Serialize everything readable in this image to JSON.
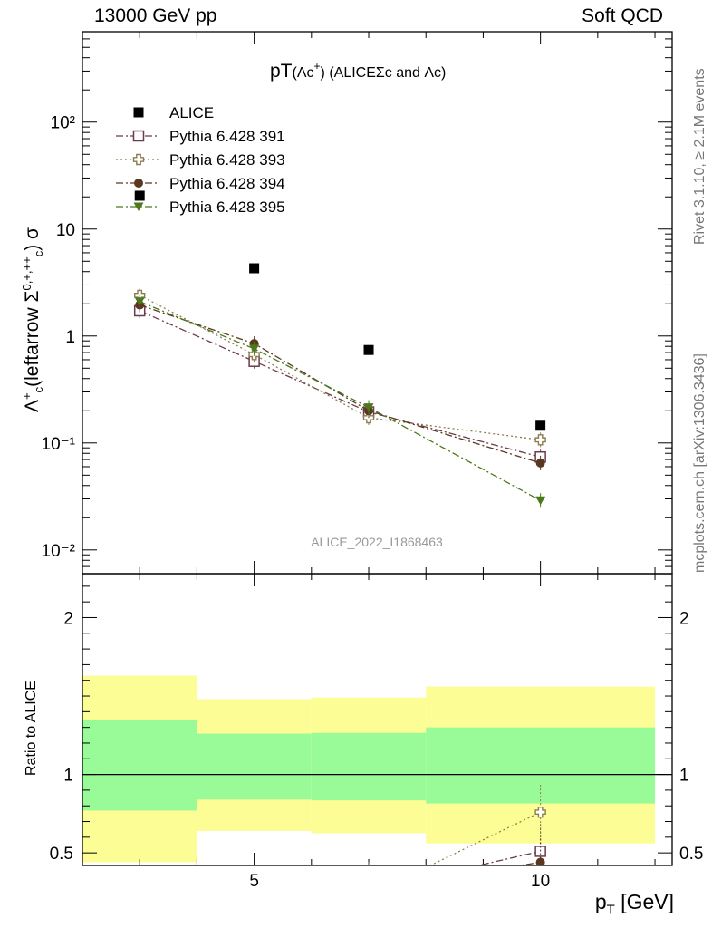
{
  "header": {
    "left": "13000 GeV pp",
    "right": "Soft QCD"
  },
  "side_text": {
    "rivet": "Rivet 3.1.10, ≥ 2.1M events",
    "mcplots": "mcplots.cern.ch [arXiv:1306.3436]"
  },
  "plot_title": {
    "main": "pT",
    "paren": "(Λc",
    "sup": "+",
    "close": ")",
    "rest": " (ALICEΣc and Λc)"
  },
  "watermark": "ALICE_2022_I1868463",
  "main_ylabel": {
    "pre": "Λ",
    "sup1": "+",
    "sub1": "c",
    "mid": "(leftarrow Σ",
    "sup2": "0,+,++",
    "sub2": "c",
    "post": ") σ"
  },
  "ratio_ylabel": "Ratio to ALICE",
  "xlabel": {
    "main": "p",
    "sub": "T",
    "unit": " [GeV]"
  },
  "chart_data": [
    {
      "type": "scatter",
      "panel": "main",
      "log_y": true,
      "xlim": [
        2,
        12.3
      ],
      "ylim": [
        0.006,
        700
      ],
      "y_tick_labels": [
        "10⁻²",
        "10⁻¹",
        "1",
        "10",
        "10²"
      ],
      "x_tick_labels": [
        "5",
        "10"
      ],
      "legend_position": "top-left",
      "series": [
        {
          "name": "ALICE",
          "color": "#000000",
          "marker": "square-filled",
          "line": "none",
          "x": [
            3,
            5,
            7,
            10
          ],
          "y": [
            20.5,
            4.3,
            0.74,
            0.145
          ],
          "xerr": [
            [
              2,
              4
            ],
            [
              4,
              6
            ],
            [
              6,
              8
            ],
            [
              8,
              12
            ]
          ]
        },
        {
          "name": "Pythia 6.428 391",
          "color": "#6b3b4a",
          "marker": "square-open",
          "line": "dashdot",
          "x": [
            3,
            5,
            7,
            10
          ],
          "y": [
            1.72,
            0.58,
            0.195,
            0.074
          ]
        },
        {
          "name": "Pythia 6.428 393",
          "color": "#8d7c4e",
          "marker": "cross-open",
          "line": "dotted",
          "x": [
            3,
            5,
            7,
            10
          ],
          "y": [
            2.4,
            0.67,
            0.172,
            0.107
          ]
        },
        {
          "name": "Pythia 6.428 394",
          "color": "#5a3820",
          "marker": "circle-filled",
          "line": "dashdot",
          "x": [
            3,
            5,
            7,
            10
          ],
          "y": [
            1.95,
            0.85,
            0.2,
            0.065
          ]
        },
        {
          "name": "Pythia 6.428 395",
          "color": "#4a7a1a",
          "marker": "triangle-down-filled",
          "line": "dashdot",
          "x": [
            3,
            5,
            7,
            10
          ],
          "y": [
            2.1,
            0.76,
            0.215,
            0.029
          ]
        }
      ]
    },
    {
      "type": "line",
      "panel": "ratio",
      "xlim": [
        2,
        12.3
      ],
      "ylim": [
        0.42,
        2.28
      ],
      "y_tick_labels": [
        "0.5",
        "1",
        "2"
      ],
      "reference_line": 1,
      "bands": [
        {
          "x0": 2,
          "x1": 4,
          "yellow": [
            0.44,
            1.63
          ],
          "green": [
            0.77,
            1.35
          ]
        },
        {
          "x0": 4,
          "x1": 6,
          "yellow": [
            0.64,
            1.48
          ],
          "green": [
            0.84,
            1.26
          ]
        },
        {
          "x0": 6,
          "x1": 8,
          "yellow": [
            0.625,
            1.49
          ],
          "green": [
            0.835,
            1.265
          ]
        },
        {
          "x0": 8,
          "x1": 12,
          "yellow": [
            0.56,
            1.56
          ],
          "green": [
            0.815,
            1.3
          ]
        }
      ],
      "band_colors": {
        "yellow": "#fdfd96",
        "green": "#98fb98"
      },
      "series": [
        {
          "name": "Pythia 6.428 391",
          "color": "#6b3b4a",
          "marker": "square-open",
          "line": "dashdot",
          "x": [
            7,
            10
          ],
          "y": [
            0.26,
            0.51
          ]
        },
        {
          "name": "Pythia 6.428 393",
          "color": "#8d7c4e",
          "marker": "cross-open",
          "line": "dotted",
          "x": [
            7,
            10
          ],
          "y": [
            0.23,
            0.76
          ]
        },
        {
          "name": "Pythia 6.428 394",
          "color": "#5a3820",
          "marker": "circle-filled",
          "line": "dashdot",
          "x": [
            7,
            10
          ],
          "y": [
            0.27,
            0.44
          ]
        }
      ]
    }
  ]
}
